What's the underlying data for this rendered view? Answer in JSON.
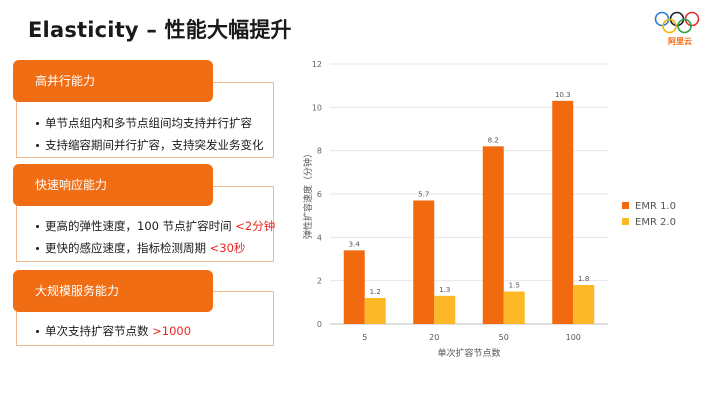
{
  "slide": {
    "title": "Elasticity – 性能大幅提升",
    "logo_text": "阿里云"
  },
  "sections": [
    {
      "heading": "高并行能力",
      "bullets": [
        {
          "text": "单节点组内和多节点组间均支持并行扩容",
          "highlight": ""
        },
        {
          "text": "支持缩容期间并行扩容，支持突发业务变化",
          "highlight": ""
        }
      ]
    },
    {
      "heading": "快速响应能力",
      "bullets": [
        {
          "text": "更高的弹性速度，100 节点扩容时间 ",
          "highlight": "<2分钟"
        },
        {
          "text": "更快的感应速度，指标检测周期 ",
          "highlight": "<30秒"
        }
      ]
    },
    {
      "heading": "大规模服务能力",
      "bullets": [
        {
          "text": "单次支持扩容节点数 ",
          "highlight": ">1000"
        }
      ]
    }
  ],
  "colors": {
    "accent": "#F06D14",
    "emr1": "#F26A10",
    "emr2": "#FDB827",
    "highlight": "#E8271F"
  },
  "chart_data": {
    "type": "bar",
    "categories": [
      "5",
      "20",
      "50",
      "100"
    ],
    "series": [
      {
        "name": "EMR 1.0",
        "values": [
          3.4,
          5.7,
          8.2,
          10.3
        ],
        "color": "#F26A10"
      },
      {
        "name": "EMR 2.0",
        "values": [
          1.2,
          1.3,
          1.5,
          1.8
        ],
        "color": "#FDB827"
      }
    ],
    "xlabel": "单次扩容节点数",
    "ylabel": "弹性扩容速度（分钟）",
    "ylim": [
      0,
      12
    ],
    "yticks": [
      0,
      2,
      4,
      6,
      8,
      10,
      12
    ],
    "grid": true,
    "data_labels": true,
    "legend_position": "right"
  }
}
